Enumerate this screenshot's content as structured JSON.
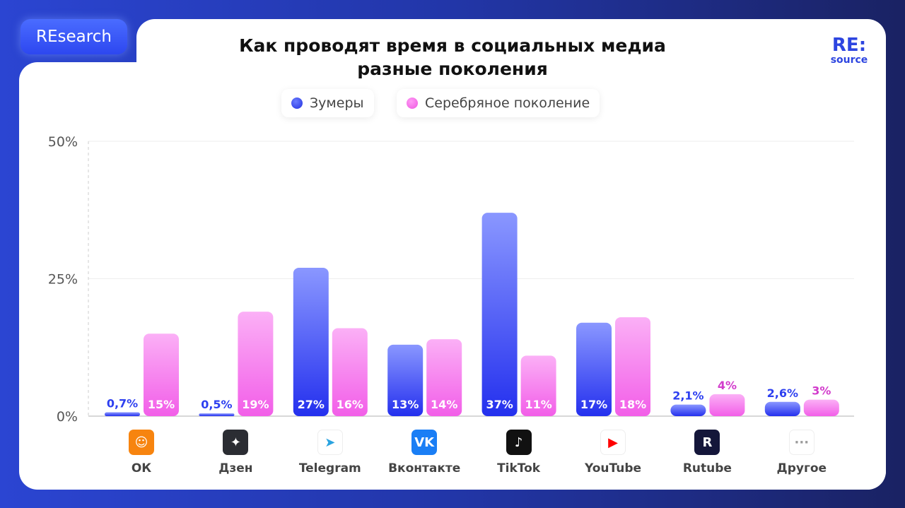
{
  "badge": "REsearch",
  "logo": {
    "top": "RE:",
    "bottom": "source"
  },
  "chart_data": {
    "type": "bar",
    "title_lines": [
      "Как проводят время в социальных медиа",
      "разные поколения"
    ],
    "categories": [
      "ОК",
      "Дзен",
      "Telegram",
      "Вконтакте",
      "TikTok",
      "YouTube",
      "Rutube",
      "Другое"
    ],
    "series": [
      {
        "name": "Зумеры",
        "values": [
          0.7,
          0.5,
          27,
          13,
          37,
          17,
          2.1,
          2.6
        ],
        "labels": [
          "0,7%",
          "0,5%",
          "27%",
          "13%",
          "37%",
          "17%",
          "2,1%",
          "2,6%"
        ],
        "color": "#2d3ff0"
      },
      {
        "name": "Серебряное поколение",
        "values": [
          15,
          19,
          16,
          14,
          11,
          18,
          4,
          3
        ],
        "labels": [
          "15%",
          "19%",
          "16%",
          "14%",
          "11%",
          "18%",
          "4%",
          "3%"
        ],
        "color": "#f25ee8"
      }
    ],
    "yticks": [
      "0%",
      "25%",
      "50%"
    ],
    "ylim": [
      0,
      50
    ],
    "grid": true,
    "legend": "top"
  },
  "icons": [
    "ok-icon",
    "dzen-icon",
    "telegram-icon",
    "vk-icon",
    "tiktok-icon",
    "youtube-icon",
    "rutube-icon",
    "more-icon"
  ]
}
